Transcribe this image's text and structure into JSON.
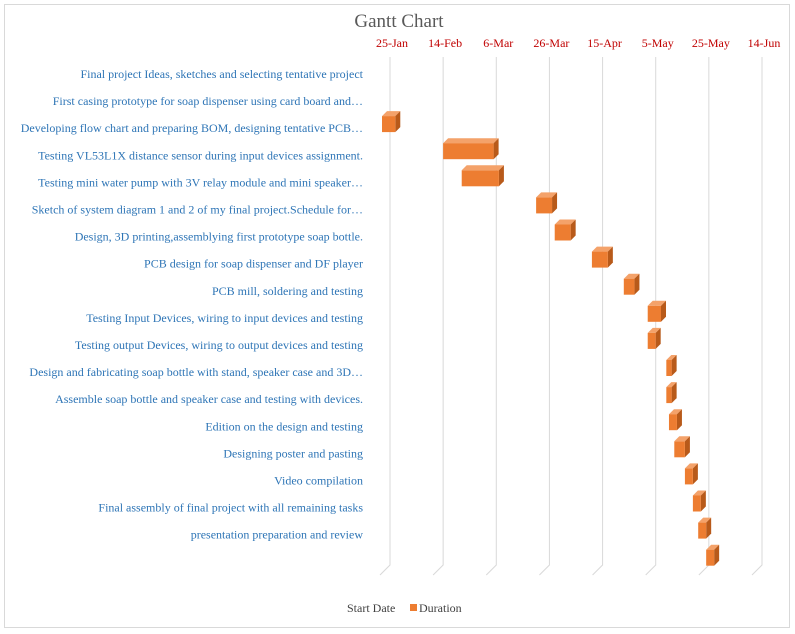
{
  "chart_data": {
    "type": "bar",
    "orientation": "horizontal",
    "stacked": true,
    "title": "Gantt Chart",
    "x_axis": {
      "type": "date",
      "position": "top",
      "ticks": [
        "25-Jan",
        "14-Feb",
        "6-Mar",
        "26-Mar",
        "15-Apr",
        "5-May",
        "25-May",
        "14-Jun"
      ],
      "tick_dates": [
        "2021-01-25",
        "2021-02-14",
        "2021-03-06",
        "2021-03-26",
        "2021-04-15",
        "2021-05-05",
        "2021-05-25",
        "2021-06-14"
      ],
      "range": [
        "2021-01-25",
        "2021-06-14"
      ],
      "gridlines": true
    },
    "categories": [
      "Final project Ideas, sketches and selecting tentative project",
      "First casing prototype for soap dispenser using card board and…",
      "Developing flow chart and preparing BOM, designing tentative PCB…",
      "Testing VL53L1X distance sensor during input devices assignment.",
      "Testing mini water pump with 3V relay module and mini speaker…",
      "Sketch of system diagram 1 and 2 of my final project.Schedule for…",
      "Design, 3D printing,assemblying first prototype soap bottle.",
      "PCB design for soap dispenser and DF player",
      "PCB mill, soldering and testing",
      "Testing Input Devices, wiring to input devices and testing",
      "Testing output Devices, wiring to output devices and testing",
      "Design and fabricating soap bottle with stand, speaker case and 3D…",
      "Assemble soap bottle and speaker case and testing with devices.",
      "Edition on the design and testing",
      "Designing poster and pasting",
      "Video compilation",
      "Final assembly of final project with all remaining tasks",
      "presentation preparation and review"
    ],
    "series": [
      {
        "name": "Start Date",
        "visible": false,
        "values": [
          "2021-01-25",
          "2021-01-25",
          "2021-02-17",
          "2021-02-24",
          "2021-03-24",
          "2021-03-31",
          "2021-04-14",
          "2021-04-26",
          "2021-05-05",
          "2021-05-05",
          "2021-05-12",
          "2021-05-12",
          "2021-05-13",
          "2021-05-15",
          "2021-05-19",
          "2021-05-22",
          "2021-05-24",
          "2021-05-27"
        ],
        "color": "#ffffff"
      },
      {
        "name": "Duration",
        "values": [
          0,
          5,
          19,
          14,
          6,
          6,
          6,
          4,
          5,
          3,
          2,
          2,
          3,
          4,
          3,
          3,
          3,
          3
        ],
        "color": "#ed7d31"
      }
    ],
    "legend": {
      "position": "bottom",
      "entries": [
        "Start Date",
        "Duration"
      ]
    }
  }
}
